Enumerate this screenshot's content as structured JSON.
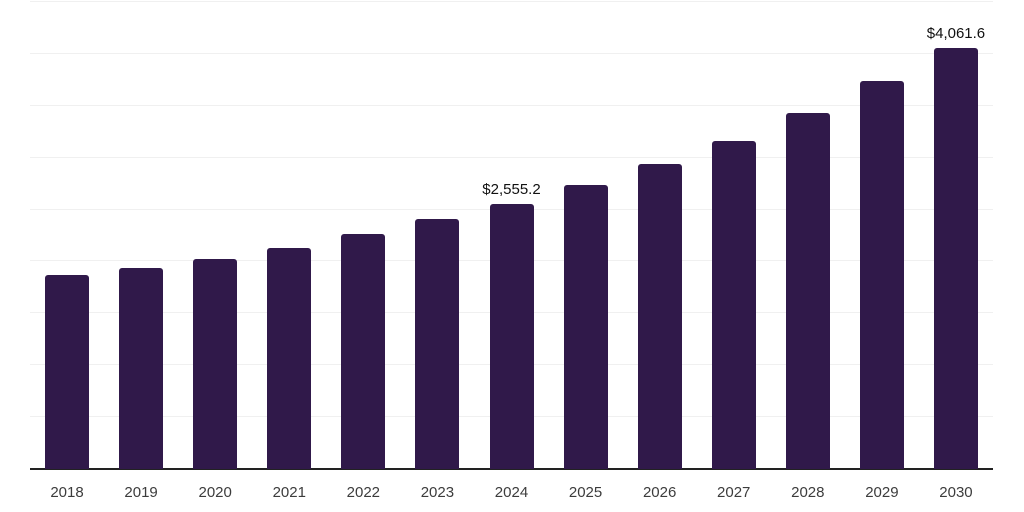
{
  "chart_data": {
    "type": "bar",
    "categories": [
      "2018",
      "2019",
      "2020",
      "2021",
      "2022",
      "2023",
      "2024",
      "2025",
      "2026",
      "2027",
      "2028",
      "2029",
      "2030"
    ],
    "values": [
      1870,
      1935,
      2023,
      2130,
      2261,
      2410,
      2555.2,
      2733,
      2937,
      3163,
      3427,
      3736,
      4061.6
    ],
    "value_labels": [
      "",
      "",
      "",
      "",
      "",
      "",
      "$2,555.2",
      "",
      "",
      "",
      "",
      "",
      "$4,061.6"
    ],
    "ylim": [
      0,
      4500
    ],
    "gridline_step": 500,
    "grid": "horizontal-only",
    "legend_position": "none",
    "x_axis": {
      "tick_labels_visible": true
    },
    "y_axis": {
      "tick_labels_visible": false
    },
    "colors": {
      "bar": "#30194a",
      "gridline": "#f0f0f0",
      "axis_line": "#222222",
      "tick_label": "#3c3c3c",
      "value_label": "#111111",
      "background": "#ffffff"
    }
  }
}
